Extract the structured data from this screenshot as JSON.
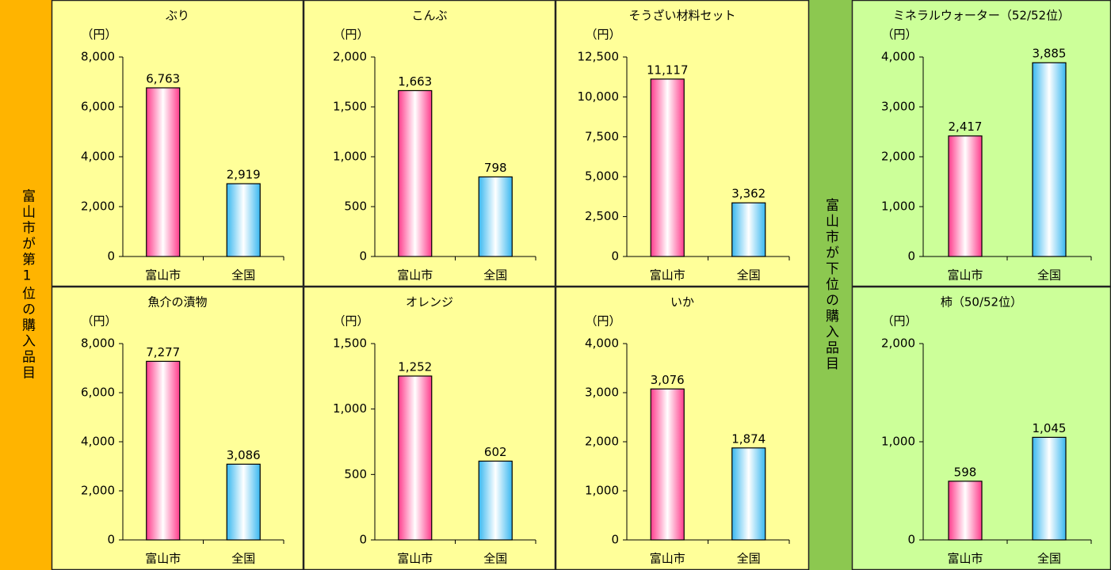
{
  "side_labels": [
    "富山市が第1位の購入品目",
    "富山市が下位の購入品目"
  ],
  "chart_data": [
    {
      "type": "bar",
      "title": "ぶり",
      "unit": "（円）",
      "categories": [
        "富山市",
        "全国"
      ],
      "values": [
        6763,
        2919
      ],
      "value_labels": [
        "6,763",
        "2,919"
      ],
      "colors": [
        "#ff3c8c",
        "#39b8f0"
      ],
      "ylim": [
        0,
        8000
      ],
      "yticks": [
        0,
        {
          "value": 2000,
          "label": "2,000"
        },
        {
          "value": 4000,
          "label": "4,000"
        },
        {
          "value": 6000,
          "label": "6,000"
        },
        {
          "value": 8000,
          "label": "8,000"
        }
      ]
    },
    {
      "type": "bar",
      "title": "こんぶ",
      "unit": "（円）",
      "categories": [
        "富山市",
        "全国"
      ],
      "values": [
        1663,
        798
      ],
      "value_labels": [
        "1,663",
        "798"
      ],
      "colors": [
        "#ff3c8c",
        "#39b8f0"
      ],
      "ylim": [
        0,
        2000
      ],
      "yticks": [
        0,
        500,
        {
          "value": 1000,
          "label": "1,000"
        },
        {
          "value": 1500,
          "label": "1,500"
        },
        {
          "value": 2000,
          "label": "2,000"
        }
      ]
    },
    {
      "type": "bar",
      "title": "そうざい材料セット",
      "unit": "（円）",
      "categories": [
        "富山市",
        "全国"
      ],
      "values": [
        11117,
        3362
      ],
      "value_labels": [
        "11,117",
        "3,362"
      ],
      "colors": [
        "#ff3c8c",
        "#39b8f0"
      ],
      "ylim": [
        0,
        12500
      ],
      "yticks": [
        0,
        {
          "value": 2500,
          "label": "2,500"
        },
        {
          "value": 5000,
          "label": "5,000"
        },
        {
          "value": 7500,
          "label": "7,500"
        },
        {
          "value": 10000,
          "label": "10,000"
        },
        {
          "value": 12500,
          "label": "12,500"
        }
      ]
    },
    {
      "type": "bar",
      "title": "ミネラルウォーター（52/52位）",
      "unit": "（円）",
      "categories": [
        "富山市",
        "全国"
      ],
      "values": [
        2417,
        3885
      ],
      "value_labels": [
        "2,417",
        "3,885"
      ],
      "colors": [
        "#ff3c8c",
        "#39b8f0"
      ],
      "ylim": [
        0,
        4000
      ],
      "yticks": [
        0,
        {
          "value": 1000,
          "label": "1,000"
        },
        {
          "value": 2000,
          "label": "2,000"
        },
        {
          "value": 3000,
          "label": "3,000"
        },
        {
          "value": 4000,
          "label": "4,000"
        }
      ]
    },
    {
      "type": "bar",
      "title": "魚介の漬物",
      "unit": "（円）",
      "categories": [
        "富山市",
        "全国"
      ],
      "values": [
        7277,
        3086
      ],
      "value_labels": [
        "7,277",
        "3,086"
      ],
      "colors": [
        "#ff3c8c",
        "#39b8f0"
      ],
      "ylim": [
        0,
        8000
      ],
      "yticks": [
        0,
        {
          "value": 2000,
          "label": "2,000"
        },
        {
          "value": 4000,
          "label": "4,000"
        },
        {
          "value": 6000,
          "label": "6,000"
        },
        {
          "value": 8000,
          "label": "8,000"
        }
      ]
    },
    {
      "type": "bar",
      "title": "オレンジ",
      "unit": "（円）",
      "categories": [
        "富山市",
        "全国"
      ],
      "values": [
        1252,
        602
      ],
      "value_labels": [
        "1,252",
        "602"
      ],
      "colors": [
        "#ff3c8c",
        "#39b8f0"
      ],
      "ylim": [
        0,
        1500
      ],
      "yticks": [
        0,
        500,
        {
          "value": 1000,
          "label": "1,000"
        },
        {
          "value": 1500,
          "label": "1,500"
        }
      ]
    },
    {
      "type": "bar",
      "title": "いか",
      "unit": "（円）",
      "categories": [
        "富山市",
        "全国"
      ],
      "values": [
        3076,
        1874
      ],
      "value_labels": [
        "3,076",
        "1,874"
      ],
      "colors": [
        "#ff3c8c",
        "#39b8f0"
      ],
      "ylim": [
        0,
        4000
      ],
      "yticks": [
        0,
        {
          "value": 1000,
          "label": "1,000"
        },
        {
          "value": 2000,
          "label": "2,000"
        },
        {
          "value": 3000,
          "label": "3,000"
        },
        {
          "value": 4000,
          "label": "4,000"
        }
      ]
    },
    {
      "type": "bar",
      "title": "柿（50/52位）",
      "unit": "（円）",
      "categories": [
        "富山市",
        "全国"
      ],
      "values": [
        598,
        1045
      ],
      "value_labels": [
        "598",
        "1,045"
      ],
      "colors": [
        "#ff3c8c",
        "#39b8f0"
      ],
      "ylim": [
        0,
        2000
      ],
      "yticks": [
        0,
        {
          "value": 1000,
          "label": "1,000"
        },
        {
          "value": 2000,
          "label": "2,000"
        }
      ]
    }
  ]
}
